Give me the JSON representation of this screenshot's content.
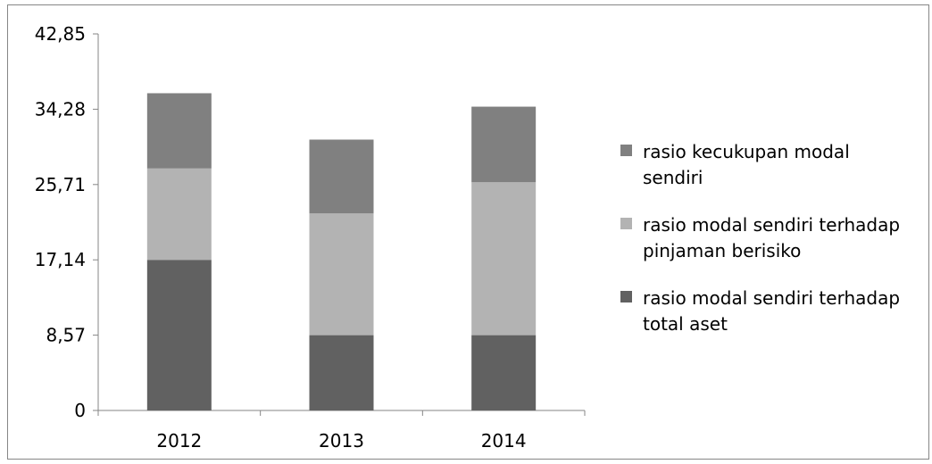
{
  "chart_data": {
    "type": "bar",
    "stacked": true,
    "categories": [
      "2012",
      "2013",
      "2014"
    ],
    "series": [
      {
        "name": "rasio modal sendiri terhadap total aset",
        "values": [
          17.14,
          8.57,
          8.57
        ],
        "color": "#616161"
      },
      {
        "name": "rasio modal sendiri terhadap pinjaman berisiko",
        "values": [
          10.4,
          13.85,
          17.4
        ],
        "color": "#b3b3b3"
      },
      {
        "name": "rasio kecukupan modal sendiri",
        "values": [
          8.56,
          8.4,
          8.6
        ],
        "color": "#808080"
      }
    ],
    "ylim": [
      0,
      42.85
    ],
    "yticks": [
      "0",
      "8,57",
      "17,14",
      "25,71",
      "34,28",
      "42,85"
    ],
    "ytick_values": [
      0,
      8.57,
      17.14,
      25.71,
      34.28,
      42.85
    ],
    "legend_order": [
      {
        "lines": [
          "rasio kecukupan modal",
          "sendiri"
        ],
        "color": "#808080"
      },
      {
        "lines": [
          "rasio modal sendiri terhadap",
          "pinjaman berisiko"
        ],
        "color": "#b3b3b3"
      },
      {
        "lines": [
          "rasio modal sendiri terhadap",
          "total aset"
        ],
        "color": "#616161"
      }
    ],
    "legend_position": "right",
    "grid": false
  }
}
